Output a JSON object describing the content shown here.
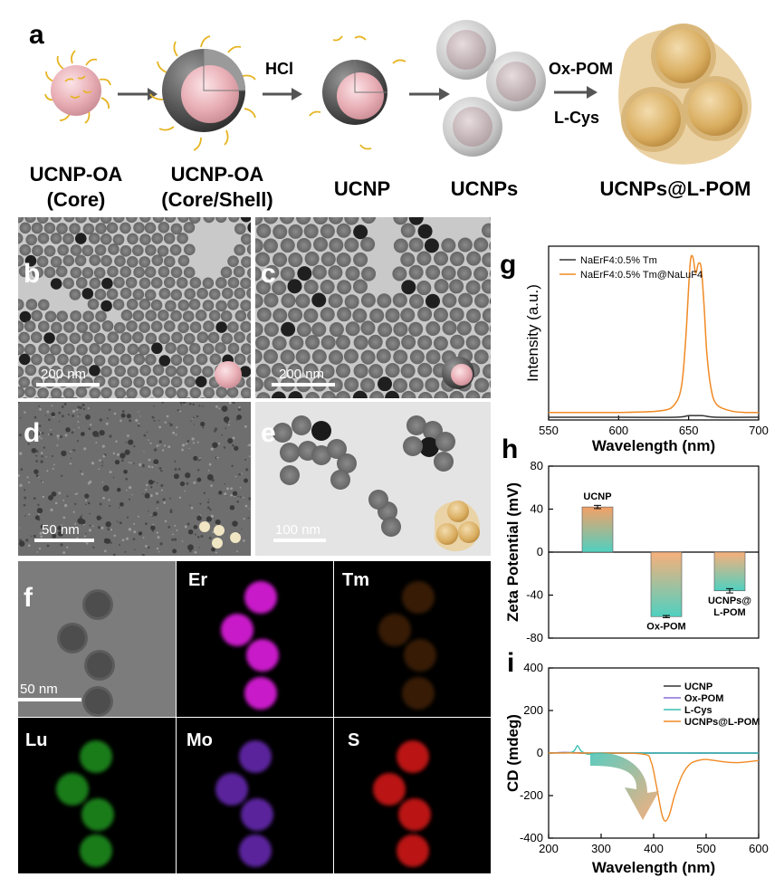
{
  "panel_a": {
    "letter": "a",
    "labels": [
      {
        "line1": "UCNP-OA",
        "line2": "(Core)"
      },
      {
        "line1": "UCNP-OA",
        "line2": "(Core/Shell)"
      },
      {
        "line1": "UCNP",
        "line2": ""
      },
      {
        "line1": "UCNPs",
        "line2": ""
      },
      {
        "line1": "UCNPs@L-POM",
        "line2": ""
      }
    ],
    "arrow_labels": {
      "hcl": "HCl",
      "oxpom": "Ox-POM",
      "lcys": "L-Cys"
    }
  },
  "tem": {
    "b": {
      "letter": "b",
      "scale": "200 nm"
    },
    "c": {
      "letter": "c",
      "scale": "200 nm"
    },
    "d": {
      "letter": "d",
      "scale": "50 nm"
    },
    "e": {
      "letter": "e",
      "scale": "100 nm"
    }
  },
  "panel_f": {
    "letter": "f",
    "scale": "50 nm",
    "maps": [
      "Er",
      "Tm",
      "Lu",
      "Mo",
      "S"
    ]
  },
  "colors": {
    "ucnp_black": "#333333",
    "orange": "#f08a24",
    "teal": "#39c0b2",
    "purple": "#8a6fd8",
    "er": "#d41ed4",
    "lu": "#1d8a1d",
    "mo": "#6a2ab8",
    "s": "#c41616"
  },
  "chart_data": [
    {
      "panel": "g",
      "type": "line",
      "xlabel": "Wavelength (nm)",
      "ylabel": "Intensity (a.u.)",
      "xlim": [
        550,
        700
      ],
      "xticks": [
        "550",
        "600",
        "650",
        "700"
      ],
      "legend": [
        "NaErF4:0.5% Tm",
        "NaErF4:0.5% Tm@NaLuF4"
      ],
      "legend_placement": "top-left",
      "series": [
        {
          "name": "NaErF4:0.5% Tm",
          "x": [
            550,
            600,
            640,
            650,
            655,
            660,
            670,
            700
          ],
          "y": [
            0.0,
            0.0,
            0.0,
            0.01,
            0.01,
            0.01,
            0.0,
            0.0
          ]
        },
        {
          "name": "NaErF4:0.5% Tm@NaLuF4",
          "x": [
            550,
            600,
            630,
            640,
            645,
            648,
            651,
            653,
            655,
            657,
            659,
            661,
            663,
            666,
            670,
            680,
            690,
            700
          ],
          "y": [
            0.03,
            0.03,
            0.04,
            0.08,
            0.2,
            0.5,
            0.95,
            1.0,
            0.9,
            0.96,
            0.93,
            0.7,
            0.4,
            0.18,
            0.08,
            0.04,
            0.03,
            0.03
          ]
        }
      ]
    },
    {
      "panel": "h",
      "type": "bar",
      "ylabel": "Zeta Potential (mV)",
      "ylim": [
        -80,
        80
      ],
      "yticks": [
        "80",
        "40",
        "0",
        "-40",
        "-80"
      ],
      "categories": [
        "UCNP",
        "Ox-POM",
        "UCNPs@\nL-POM"
      ],
      "values": [
        42,
        -60,
        -36
      ],
      "errors": [
        1.5,
        1,
        2
      ]
    },
    {
      "panel": "i",
      "type": "line",
      "xlabel": "Wavelength (nm)",
      "ylabel": "CD (mdeg)",
      "xlim": [
        200,
        600
      ],
      "ylim": [
        -400,
        400
      ],
      "xticks": [
        "200",
        "300",
        "400",
        "500",
        "600"
      ],
      "yticks": [
        "400",
        "200",
        "0",
        "-200",
        "-400"
      ],
      "legend": [
        "UCNP",
        "Ox-POM",
        "L-Cys",
        "UCNPs@L-POM"
      ],
      "legend_placement": "top-right",
      "series": [
        {
          "name": "UCNP",
          "x": [
            200,
            230,
            260,
            300,
            400,
            500,
            600
          ],
          "y": [
            0,
            2,
            0,
            -1,
            0,
            0,
            0
          ]
        },
        {
          "name": "Ox-POM",
          "x": [
            200,
            230,
            260,
            300,
            400,
            500,
            600
          ],
          "y": [
            0,
            3,
            1,
            0,
            0,
            0,
            0
          ]
        },
        {
          "name": "L-Cys",
          "x": [
            200,
            240,
            250,
            255,
            262,
            275,
            300,
            400,
            500,
            600
          ],
          "y": [
            0,
            2,
            15,
            35,
            10,
            -5,
            0,
            0,
            0,
            0
          ]
        },
        {
          "name": "UCNPs@L-POM",
          "x": [
            200,
            300,
            380,
            395,
            405,
            415,
            422,
            430,
            440,
            455,
            470,
            485,
            500,
            530,
            560,
            600
          ],
          "y": [
            0,
            0,
            -5,
            -40,
            -150,
            -280,
            -320,
            -290,
            -200,
            -100,
            -50,
            -35,
            -30,
            -40,
            -45,
            -35
          ]
        }
      ]
    }
  ]
}
